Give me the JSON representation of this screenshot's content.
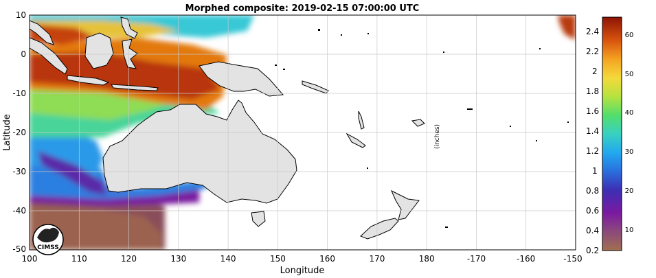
{
  "title": "Morphed composite: 2019-02-15 07:00:00 UTC",
  "xlabel": "Longitude",
  "ylabel": "Latitude",
  "unit_label": "(inches)",
  "logo_text": "CIMSS",
  "x_ticks": [
    "100",
    "110",
    "120",
    "130",
    "140",
    "150",
    "160",
    "170",
    "180",
    "-170",
    "-160",
    "-150"
  ],
  "y_ticks": [
    "10",
    "0",
    "-10",
    "-20",
    "-30",
    "-40",
    "-50"
  ],
  "colorbar": {
    "inch_ticks": [
      "2.4",
      "2.2",
      "2",
      "1.8",
      "1.6",
      "1.4",
      "1.2",
      "1",
      "0.8",
      "0.6",
      "0.4",
      "0.2"
    ],
    "mm_ticks": [
      "60",
      "50",
      "40",
      "30",
      "20",
      "10"
    ],
    "colors": [
      "#9c6b52",
      "#8a3f86",
      "#6d17a1",
      "#3a2fb3",
      "#2f7fe0",
      "#25b6ec",
      "#3cdc9a",
      "#a7e34a",
      "#f2d63c",
      "#f39a1c",
      "#d8520d",
      "#9d1a05"
    ]
  },
  "colors": {
    "land": "#e3e3e3",
    "grid": "#cfcfcf",
    "coast": "#000000"
  }
}
